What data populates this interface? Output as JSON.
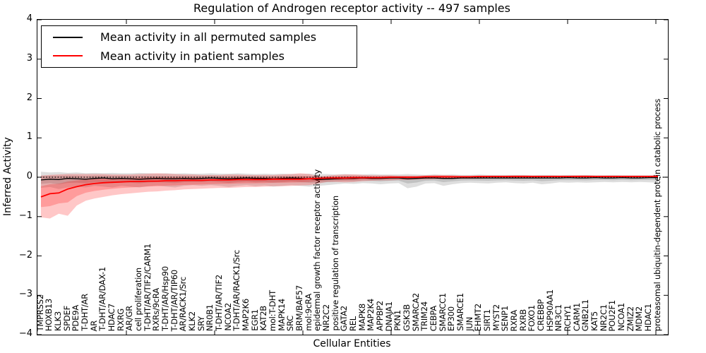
{
  "title": "Regulation of Androgen receptor activity -- 497 samples",
  "axes": {
    "ylabel": "Inferred Activity",
    "xlabel": "Cellular Entities"
  },
  "legend": {
    "items": [
      {
        "label": "Mean activity in all permuted samples",
        "color": "#000000"
      },
      {
        "label": "Mean activity in patient samples",
        "color": "#ff0000"
      }
    ]
  },
  "chart_data": {
    "type": "line",
    "title": "Regulation of Androgen receptor activity -- 497 samples",
    "xlabel": "Cellular Entities",
    "ylabel": "Inferred Activity",
    "ylim": [
      -4,
      4
    ],
    "yticks": [
      "4",
      "3",
      "2",
      "1",
      "0",
      "−1",
      "−2",
      "−3",
      "−4"
    ],
    "ytick_values": [
      4,
      3,
      2,
      1,
      0,
      -1,
      -2,
      -3,
      -4
    ],
    "grid": false,
    "legend_position": "upper left",
    "zero_line": {
      "style": "dotted",
      "color": "#000000",
      "value": 0
    },
    "categories": [
      "TMPRSS2",
      "HOXB13",
      "KLK3",
      "SPDEF",
      "PDE9A",
      "T-DHT/AR",
      "AR",
      "T-DHT/AR/DAX-1",
      "HDAC7",
      "RXRG",
      "AR/GR",
      "cell proliferation",
      "T-DHT/AR/TIF2/CARM1",
      "RXRs/9cRA",
      "T-DHT/AR/Hsp90",
      "T-DHT/AR/TIP60",
      "AR/RACK1/Src",
      "KLK2",
      "SRY",
      "NR0B1",
      "T-DHT/AR/TIF2",
      "NCOA2",
      "T-DHT/AR/RACK1/Src",
      "MAP2K6",
      "EGR1",
      "KAT2B",
      "mol:T-DHT",
      "MAPK14",
      "SRC",
      "BRM/BAF57",
      "mol:9cRA",
      "epidermal growth factor receptor activity",
      "NR2C2",
      "positive regulation of transcription",
      "GATA2",
      "REL",
      "MAPK8",
      "MAP2K4",
      "APPBP2",
      "DNAJA1",
      "PKN1",
      "GSK3B",
      "SMARCA2",
      "TRIM24",
      "CEBPA",
      "SMARCC1",
      "EP300",
      "SMARCE1",
      "JUN",
      "EHMT2",
      "SIRT1",
      "MYST2",
      "SENP1",
      "RXRA",
      "RXRB",
      "FOXO1",
      "CREBBP",
      "HSP90AA1",
      "NR3C1",
      "RCHY1",
      "CARM1",
      "GNB2L1",
      "KAT5",
      "NR2C1",
      "POU2F1",
      "NCOA1",
      "ZMIZ2",
      "MDM2",
      "HDAC1",
      "proteasomal ubiquitin-dependent protein catabolic process"
    ],
    "series": [
      {
        "name": "Mean activity in all permuted samples",
        "color": "#000000",
        "band_color": "rgba(0,0,0,0.13)",
        "values": [
          -0.07,
          -0.05,
          -0.06,
          -0.03,
          -0.04,
          -0.05,
          -0.03,
          -0.02,
          -0.04,
          -0.03,
          -0.04,
          -0.05,
          -0.04,
          -0.03,
          -0.04,
          -0.04,
          -0.03,
          -0.04,
          -0.03,
          -0.02,
          -0.03,
          -0.04,
          -0.03,
          -0.02,
          -0.03,
          -0.03,
          -0.04,
          -0.03,
          -0.02,
          -0.03,
          -0.04,
          -0.06,
          -0.05,
          -0.04,
          -0.03,
          -0.03,
          -0.02,
          -0.03,
          -0.03,
          -0.02,
          -0.02,
          -0.04,
          -0.03,
          -0.02,
          -0.02,
          -0.03,
          -0.03,
          -0.02,
          -0.02,
          -0.02,
          -0.02,
          -0.02,
          -0.02,
          -0.02,
          -0.02,
          -0.02,
          -0.02,
          -0.02,
          -0.02,
          -0.01,
          -0.02,
          -0.02,
          -0.01,
          -0.02,
          -0.02,
          -0.01,
          -0.02,
          -0.02,
          -0.01,
          -0.01
        ],
        "band_upper": [
          0.14,
          0.12,
          0.13,
          0.11,
          0.12,
          0.1,
          0.11,
          0.1,
          0.11,
          0.1,
          0.1,
          0.11,
          0.1,
          0.09,
          0.1,
          0.09,
          0.1,
          0.09,
          0.09,
          0.1,
          0.09,
          0.09,
          0.1,
          0.09,
          0.08,
          0.09,
          0.08,
          0.09,
          0.08,
          0.08,
          0.09,
          0.08,
          0.08,
          0.07,
          0.08,
          0.07,
          0.07,
          0.08,
          0.07,
          0.07,
          0.07,
          0.08,
          0.07,
          0.06,
          0.07,
          0.06,
          0.07,
          0.06,
          0.06,
          0.07,
          0.06,
          0.06,
          0.06,
          0.06,
          0.06,
          0.05,
          0.06,
          0.06,
          0.05,
          0.06,
          0.05,
          0.06,
          0.05,
          0.05,
          0.06,
          0.05,
          0.05,
          0.05,
          0.05,
          0.06
        ],
        "band_lower": [
          -0.27,
          -0.25,
          -0.3,
          -0.26,
          -0.24,
          -0.26,
          -0.22,
          -0.24,
          -0.26,
          -0.22,
          -0.24,
          -0.26,
          -0.23,
          -0.21,
          -0.24,
          -0.26,
          -0.22,
          -0.2,
          -0.22,
          -0.2,
          -0.22,
          -0.25,
          -0.22,
          -0.2,
          -0.23,
          -0.21,
          -0.24,
          -0.22,
          -0.2,
          -0.22,
          -0.24,
          -0.22,
          -0.2,
          -0.18,
          -0.16,
          -0.17,
          -0.15,
          -0.16,
          -0.18,
          -0.16,
          -0.15,
          -0.28,
          -0.24,
          -0.16,
          -0.15,
          -0.22,
          -0.18,
          -0.15,
          -0.14,
          -0.15,
          -0.16,
          -0.14,
          -0.13,
          -0.15,
          -0.16,
          -0.14,
          -0.18,
          -0.16,
          -0.13,
          -0.14,
          -0.13,
          -0.14,
          -0.13,
          -0.12,
          -0.13,
          -0.12,
          -0.13,
          -0.12,
          -0.13,
          -0.14
        ]
      },
      {
        "name": "Mean activity in patient samples",
        "color": "#ff0000",
        "band_color": "rgba(255,0,0,0.22)",
        "values": [
          -0.5,
          -0.42,
          -0.4,
          -0.3,
          -0.24,
          -0.19,
          -0.16,
          -0.14,
          -0.13,
          -0.12,
          -0.11,
          -0.11,
          -0.1,
          -0.1,
          -0.09,
          -0.09,
          -0.08,
          -0.08,
          -0.08,
          -0.07,
          -0.07,
          -0.07,
          -0.06,
          -0.06,
          -0.06,
          -0.06,
          -0.05,
          -0.05,
          -0.05,
          -0.05,
          -0.04,
          -0.03,
          -0.02,
          -0.02,
          -0.02,
          -0.01,
          -0.01,
          -0.01,
          -0.01,
          0.0,
          0.0,
          0.0,
          0.0,
          0.01,
          0.01,
          0.01,
          0.01,
          0.01,
          0.01,
          0.02,
          0.02,
          0.02,
          0.02,
          0.02,
          0.02,
          0.02,
          0.02,
          0.02,
          0.02,
          0.02,
          0.02,
          0.02,
          0.02,
          0.02,
          0.02,
          0.02,
          0.02,
          0.02,
          0.02,
          0.02
        ],
        "band_upper": [
          0.04,
          0.06,
          0.07,
          0.08,
          0.08,
          0.08,
          0.08,
          0.08,
          0.07,
          0.07,
          0.07,
          0.08,
          0.09,
          0.1,
          0.09,
          0.08,
          0.07,
          0.07,
          0.06,
          0.06,
          0.06,
          0.07,
          0.07,
          0.06,
          0.06,
          0.06,
          0.06,
          0.07,
          0.08,
          0.1,
          0.08,
          0.02,
          0.04,
          0.06,
          0.07,
          0.07,
          0.06,
          0.05,
          0.05,
          0.05,
          0.04,
          0.04,
          0.04,
          0.05,
          0.06,
          0.06,
          0.05,
          0.04,
          0.04,
          0.04,
          0.04,
          0.04,
          0.04,
          0.05,
          0.05,
          0.04,
          0.04,
          0.04,
          0.04,
          0.04,
          0.05,
          0.05,
          0.04,
          0.04,
          0.04,
          0.04,
          0.04,
          0.04,
          0.04,
          0.05
        ],
        "band_lower": [
          -1.02,
          -1.05,
          -0.93,
          -0.98,
          -0.72,
          -0.6,
          -0.54,
          -0.5,
          -0.46,
          -0.43,
          -0.41,
          -0.39,
          -0.37,
          -0.36,
          -0.34,
          -0.33,
          -0.31,
          -0.3,
          -0.29,
          -0.28,
          -0.27,
          -0.27,
          -0.26,
          -0.25,
          -0.25,
          -0.24,
          -0.23,
          -0.23,
          -0.22,
          -0.21,
          -0.2,
          -0.16,
          -0.12,
          -0.12,
          -0.13,
          -0.12,
          -0.1,
          -0.09,
          -0.08,
          -0.08,
          -0.07,
          -0.07,
          -0.06,
          -0.06,
          -0.05,
          -0.05,
          -0.05,
          -0.04,
          -0.04,
          -0.04,
          -0.03,
          -0.03,
          -0.03,
          -0.03,
          -0.03,
          -0.03,
          -0.03,
          -0.02,
          -0.02,
          -0.02,
          -0.02,
          -0.02,
          -0.02,
          -0.02,
          -0.02,
          -0.02,
          -0.02,
          -0.02,
          -0.02,
          -0.02
        ]
      }
    ]
  }
}
